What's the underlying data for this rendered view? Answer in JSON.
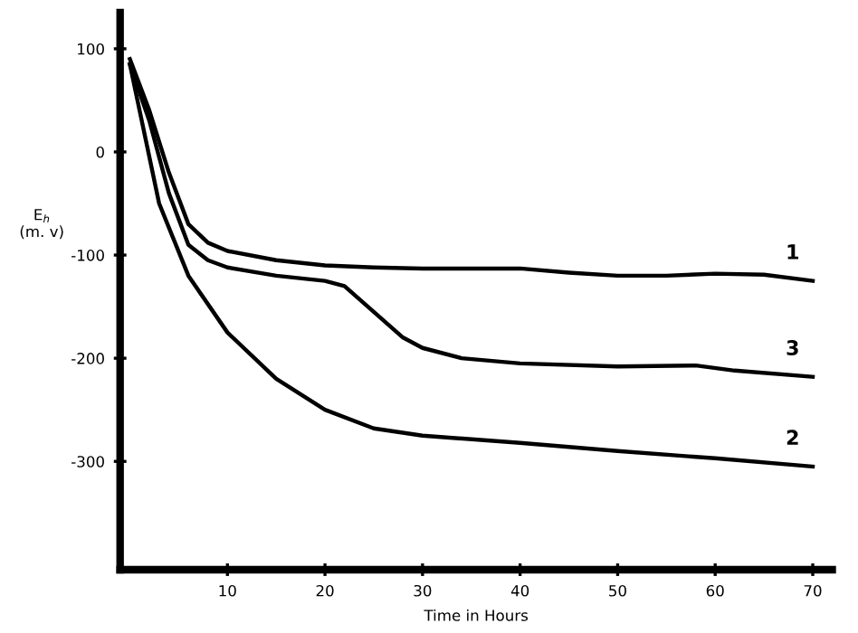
{
  "chart_data": {
    "type": "line",
    "xlabel": "Time in Hours",
    "ylabel": "E$_{h}$\n(m. v)",
    "xlim": [
      -1,
      72
    ],
    "ylim": [
      -405,
      135
    ],
    "xticks": [
      10,
      20,
      30,
      40,
      50,
      60,
      70
    ],
    "yticks": [
      100,
      0,
      -100,
      -200,
      -300
    ],
    "grid": false,
    "legend": false,
    "marker": "none",
    "line_style": "solid",
    "series": [
      {
        "name": "1",
        "color": "#000000",
        "x": [
          0,
          2,
          4,
          6,
          8,
          10,
          15,
          20,
          25,
          30,
          35,
          40,
          45,
          50,
          55,
          60,
          65,
          70
        ],
        "values": [
          90,
          40,
          -20,
          -70,
          -88,
          -96,
          -105,
          -110,
          -112,
          -113,
          -113,
          -113,
          -117,
          -120,
          -120,
          -118,
          -119,
          -125
        ]
      },
      {
        "name": "3",
        "color": "#000000",
        "x": [
          0,
          2,
          4,
          6,
          8,
          10,
          15,
          20,
          22,
          25,
          28,
          30,
          34,
          40,
          50,
          58,
          62,
          70
        ],
        "values": [
          85,
          30,
          -40,
          -90,
          -105,
          -112,
          -120,
          -125,
          -130,
          -155,
          -180,
          -190,
          -200,
          -205,
          -208,
          -207,
          -212,
          -218
        ]
      },
      {
        "name": "2",
        "color": "#000000",
        "x": [
          0,
          1,
          3,
          6,
          10,
          15,
          20,
          25,
          30,
          40,
          50,
          60,
          70
        ],
        "values": [
          85,
          40,
          -50,
          -120,
          -175,
          -220,
          -250,
          -268,
          -275,
          -282,
          -290,
          -297,
          -305
        ]
      }
    ]
  }
}
